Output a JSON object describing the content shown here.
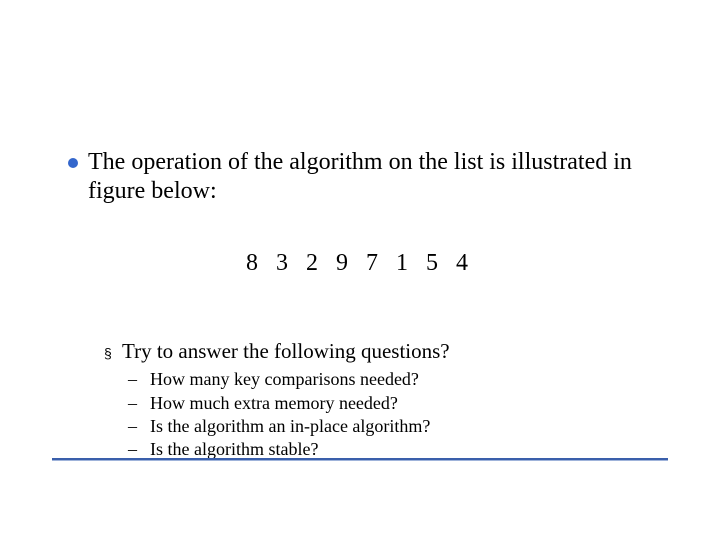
{
  "colors": {
    "bullet_dot": "#3366cc",
    "rule_top": "#3a5fab",
    "rule_bottom": "#9fb3da",
    "text": "#000000",
    "background": "#ffffff"
  },
  "typography": {
    "body_font": "Times New Roman",
    "main_bullet_size_pt": 24,
    "sequence_size_pt": 24,
    "sub_bullet_size_pt": 21,
    "question_size_pt": 18,
    "sub_bullet_marker_family": "Arial"
  },
  "main_bullet": {
    "text": "The operation of the algorithm on the list is illustrated in figure below:"
  },
  "sequence": {
    "text": "8 3 2 9 7 1 5 4"
  },
  "sub_bullet": {
    "marker": "§",
    "text": "Try to answer the following questions?"
  },
  "questions": {
    "marker": "–",
    "items": [
      "How many key comparisons needed?",
      "How much extra memory needed?",
      "Is the algorithm an in-place algorithm?",
      "Is the algorithm stable?"
    ]
  }
}
